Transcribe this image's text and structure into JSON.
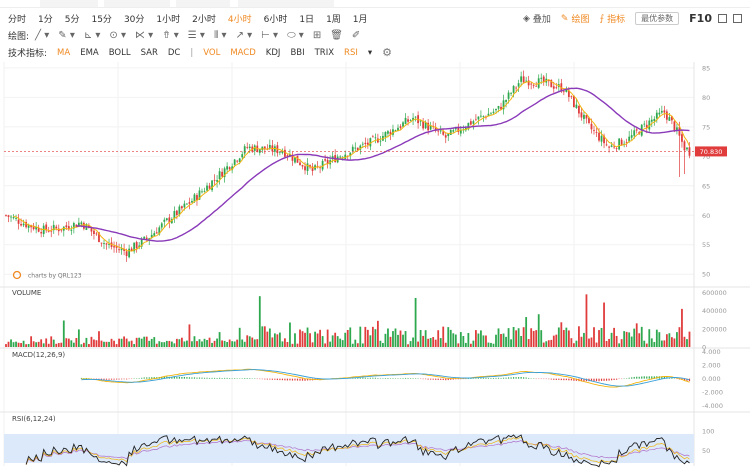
{
  "timeframes": [
    {
      "label": "分时",
      "active": false
    },
    {
      "label": "1分",
      "active": false
    },
    {
      "label": "5分",
      "active": false
    },
    {
      "label": "15分",
      "active": false
    },
    {
      "label": "30分",
      "active": false
    },
    {
      "label": "1小时",
      "active": false
    },
    {
      "label": "2小时",
      "active": false
    },
    {
      "label": "4小时",
      "active": true
    },
    {
      "label": "6小时",
      "active": false
    },
    {
      "label": "1日",
      "active": false
    },
    {
      "label": "1周",
      "active": false
    },
    {
      "label": "1月",
      "active": false
    }
  ],
  "right_tools": {
    "overlay_label": "叠加",
    "draw_label": "绘图",
    "indicator_label": "指标",
    "defaults_button": "最优参数",
    "f10_label": "F10"
  },
  "drawing": {
    "label": "绘图:",
    "tools": [
      "╱ ▾",
      "✎ ▾",
      "⊾ ▾",
      "⊙ ▾",
      "⋉ ▾",
      "⇮ ▾",
      "☰ ▾",
      "⦀ ▾",
      "↗ ▾",
      "⊢ ▾",
      "⬭ ▾",
      "⊞",
      "🗑",
      "✐"
    ]
  },
  "indicators": {
    "label": "技术指标:",
    "main": [
      {
        "label": "MA",
        "highlight": true
      },
      {
        "label": "EMA",
        "highlight": false
      },
      {
        "label": "BOLL",
        "highlight": false
      },
      {
        "label": "SAR",
        "highlight": false
      },
      {
        "label": "DC",
        "highlight": false
      }
    ],
    "separator": "|",
    "sub": [
      {
        "label": "VOL",
        "highlight": true
      },
      {
        "label": "MACD",
        "highlight": true
      },
      {
        "label": "KDJ",
        "highlight": false
      },
      {
        "label": "BBI",
        "highlight": false
      },
      {
        "label": "TRIX",
        "highlight": false
      },
      {
        "label": "RSI",
        "highlight": true
      }
    ],
    "more": "▾"
  },
  "panels": {
    "watermark": "charts by QRL123",
    "volume_label": "VOLUME",
    "macd_label": "MACD(12,26,9)",
    "rsi_label": "RSI(6,12,24)",
    "current_price": "70.830"
  },
  "colors": {
    "up": "#2ea84e",
    "down": "#e03c3c",
    "ma_fast": "#f1b40f",
    "ma_slow": "#8a3ab9",
    "accent": "#f08a24",
    "rsi_band": "#dbe9fb"
  },
  "chart_data": {
    "type": "candlestick",
    "price_axis": {
      "ticks": [
        "85",
        "80",
        "75",
        "70",
        "65",
        "60",
        "55",
        "50"
      ],
      "range": [
        48,
        86
      ]
    },
    "volume_axis": {
      "ticks": [
        "600000",
        "400000",
        "200000",
        "0"
      ],
      "range": [
        0,
        650000
      ]
    },
    "macd_axis": {
      "ticks": [
        "4.000",
        "2.000",
        "0.000",
        "-2.000",
        "-4.000"
      ],
      "range": [
        -4.8,
        4.4
      ]
    },
    "rsi_axis": {
      "ticks": [
        "100",
        "50"
      ],
      "range": [
        0,
        100
      ]
    },
    "price_waypoints": [
      [
        0,
        60
      ],
      [
        8,
        58.5
      ],
      [
        15,
        57.5
      ],
      [
        22,
        57.8
      ],
      [
        30,
        58.8
      ],
      [
        40,
        55
      ],
      [
        48,
        53.8
      ],
      [
        56,
        56
      ],
      [
        64,
        59
      ],
      [
        74,
        62.5
      ],
      [
        84,
        66.5
      ],
      [
        96,
        71.5
      ],
      [
        110,
        71
      ],
      [
        122,
        67.5
      ],
      [
        132,
        70
      ],
      [
        146,
        72.5
      ],
      [
        162,
        76.5
      ],
      [
        175,
        73.2
      ],
      [
        186,
        76
      ],
      [
        196,
        78
      ],
      [
        205,
        83
      ],
      [
        214,
        82.5
      ],
      [
        222,
        81.5
      ],
      [
        232,
        75
      ],
      [
        240,
        71.5
      ],
      [
        248,
        73
      ],
      [
        256,
        75.8
      ],
      [
        262,
        77.5
      ],
      [
        266,
        75
      ],
      [
        270,
        71.5
      ],
      [
        272,
        70.8
      ]
    ],
    "volume_spikes": [
      [
        101,
        560000
      ],
      [
        163,
        540000
      ],
      [
        207,
        330000
      ],
      [
        231,
        580000
      ],
      [
        238,
        490000
      ],
      [
        269,
        420000
      ]
    ],
    "candle_count": 273
  }
}
